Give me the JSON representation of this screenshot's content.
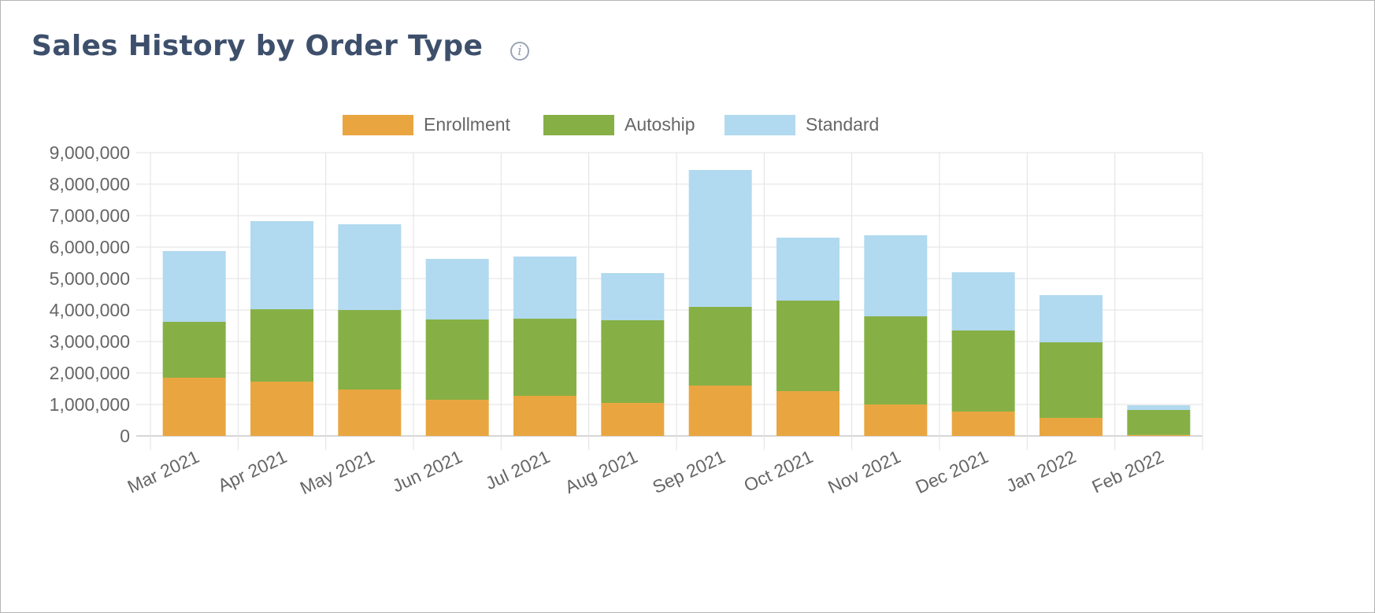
{
  "header": {
    "title": "Sales History by Order Type",
    "info_icon": "info-icon"
  },
  "chart_data": {
    "type": "bar",
    "stacked": true,
    "title": "",
    "xlabel": "",
    "ylabel": "",
    "ylim": [
      0,
      9000000
    ],
    "yticks": [
      "0",
      "1,000,000",
      "2,000,000",
      "3,000,000",
      "4,000,000",
      "5,000,000",
      "6,000,000",
      "7,000,000",
      "8,000,000",
      "9,000,000"
    ],
    "grid": true,
    "legend_position": "top",
    "categories": [
      "Mar 2021",
      "Apr 2021",
      "May 2021",
      "Jun 2021",
      "Jul 2021",
      "Aug 2021",
      "Sep 2021",
      "Oct 2021",
      "Nov 2021",
      "Dec 2021",
      "Jan 2022",
      "Feb 2022"
    ],
    "series": [
      {
        "name": "Enrollment",
        "color": "#E9A640",
        "values": [
          1850000,
          1725000,
          1475000,
          1150000,
          1275000,
          1050000,
          1600000,
          1425000,
          1000000,
          775000,
          575000,
          30000
        ]
      },
      {
        "name": "Autoship",
        "color": "#86B046",
        "values": [
          1775000,
          2300000,
          2525000,
          2550000,
          2450000,
          2625000,
          2500000,
          2875000,
          2800000,
          2575000,
          2400000,
          795000
        ]
      },
      {
        "name": "Standard",
        "color": "#B1D9EF",
        "values": [
          2250000,
          2800000,
          2725000,
          1925000,
          1975000,
          1500000,
          4350000,
          2000000,
          2575000,
          1850000,
          1500000,
          150000
        ]
      }
    ]
  }
}
